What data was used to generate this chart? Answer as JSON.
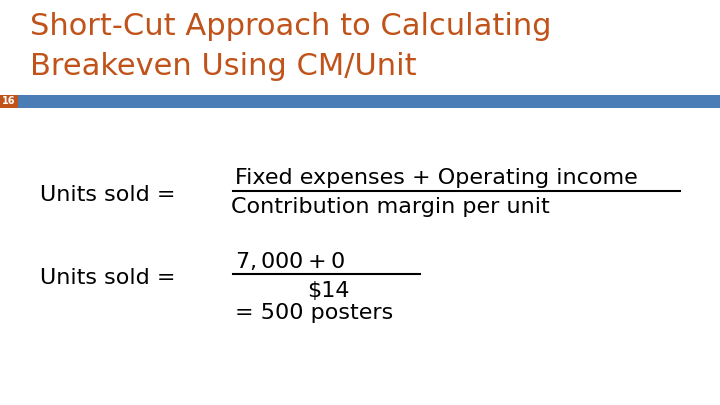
{
  "title_line1": "Short-Cut Approach to Calculating",
  "title_line2": "Breakeven Using CM/Unit",
  "title_color": "#C0531A",
  "slide_number": "16",
  "slide_number_bg": "#C0531A",
  "slide_number_color": "#ffffff",
  "bar_color": "#4A7DB5",
  "background_color": "#ffffff",
  "formula1_label": "Units sold = ",
  "formula1_numerator": "Fixed expenses + Operating income",
  "formula1_denominator": "Contribution margin per unit",
  "formula2_label": "Units sold = ",
  "formula2_numerator": "$7,000 + $0",
  "formula2_denominator": "$14",
  "formula3": "= 500 posters",
  "title_fontsize": 22,
  "body_fontsize": 16,
  "slide_num_fontsize": 7
}
